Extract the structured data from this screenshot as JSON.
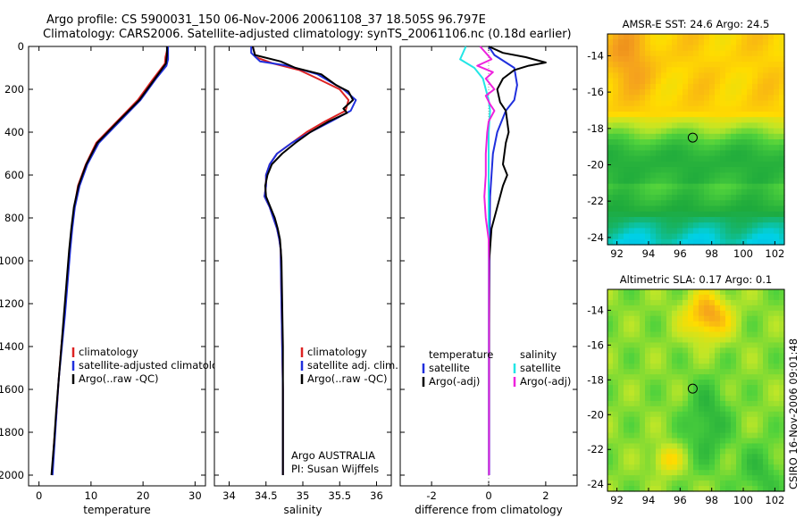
{
  "header": {
    "title_line1": "Argo profile: CS 5900031_150 06-Nov-2006 20061108_37 18.505S 96.797E",
    "title_line2": "Climatology: CARS2006. Satellite-adjusted climatology: synTS_20061106.nc (0.18d earlier)"
  },
  "colors": {
    "climatology": "#dd2222",
    "satellite_adjusted": "#1f2fdd",
    "argo": "#000000",
    "salinity_satellite": "#22e6e6",
    "salinity_argo": "#ee22dd"
  },
  "chart_data": [
    {
      "id": "temperature",
      "type": "line",
      "xlabel": "temperature",
      "ylabel": "",
      "xlim": [
        -2,
        32
      ],
      "ylim": [
        2050,
        0
      ],
      "xticks": [
        0,
        10,
        20,
        30
      ],
      "yticks": [
        0,
        200,
        400,
        600,
        800,
        1000,
        1200,
        1400,
        1600,
        1800,
        2000
      ],
      "legend": {
        "placement": "lower-right",
        "entries": [
          "climatology",
          "satellite-adjusted climatology",
          "Argo(..raw -QC)"
        ]
      },
      "series": [
        {
          "name": "climatology",
          "color": "#dd2222",
          "points": [
            [
              24.8,
              0
            ],
            [
              24.3,
              50
            ],
            [
              24.2,
              80
            ],
            [
              22,
              150
            ],
            [
              19,
              250
            ],
            [
              15,
              350
            ],
            [
              11,
              450
            ],
            [
              9,
              550
            ],
            [
              7.5,
              650
            ],
            [
              6.8,
              750
            ],
            [
              6.3,
              850
            ],
            [
              5.9,
              950
            ],
            [
              5.4,
              1100
            ],
            [
              4.9,
              1250
            ],
            [
              4.3,
              1400
            ],
            [
              3.8,
              1550
            ],
            [
              3.4,
              1700
            ],
            [
              2.9,
              1850
            ],
            [
              2.5,
              2000
            ]
          ]
        },
        {
          "name": "satellite-adjusted climatology",
          "color": "#1f2fdd",
          "points": [
            [
              24.8,
              0
            ],
            [
              24.8,
              60
            ],
            [
              24.5,
              90
            ],
            [
              22.5,
              150
            ],
            [
              19.5,
              250
            ],
            [
              15.5,
              350
            ],
            [
              11.5,
              450
            ],
            [
              9.3,
              550
            ],
            [
              7.8,
              650
            ],
            [
              6.9,
              750
            ],
            [
              6.4,
              850
            ],
            [
              6.0,
              950
            ],
            [
              5.5,
              1100
            ],
            [
              5.0,
              1250
            ],
            [
              4.4,
              1400
            ],
            [
              3.8,
              1550
            ],
            [
              3.4,
              1700
            ],
            [
              3.0,
              1850
            ],
            [
              2.6,
              2000
            ]
          ]
        },
        {
          "name": "Argo(..raw -QC)",
          "color": "#000000",
          "points": [
            [
              24.6,
              0
            ],
            [
              24.6,
              40
            ],
            [
              24.4,
              80
            ],
            [
              22.3,
              150
            ],
            [
              19.3,
              250
            ],
            [
              15.2,
              350
            ],
            [
              11.2,
              450
            ],
            [
              9.1,
              550
            ],
            [
              7.6,
              650
            ],
            [
              6.7,
              750
            ],
            [
              6.2,
              850
            ],
            [
              5.8,
              950
            ],
            [
              5.3,
              1100
            ],
            [
              4.8,
              1250
            ],
            [
              4.3,
              1400
            ],
            [
              3.8,
              1550
            ],
            [
              3.3,
              1700
            ],
            [
              2.9,
              1850
            ],
            [
              2.4,
              2000
            ]
          ]
        }
      ]
    },
    {
      "id": "salinity",
      "type": "line",
      "xlabel": "salinity",
      "ylabel": "",
      "xlim": [
        33.8,
        36.2
      ],
      "ylim": [
        2050,
        0
      ],
      "xticks": [
        34,
        34.5,
        35,
        35.5,
        36
      ],
      "legend": {
        "placement": "lower-right",
        "entries": [
          "climatology",
          "satellite adj. clim.",
          "Argo(..raw -QC)"
        ]
      },
      "annotations": [
        "Argo AUSTRALIA",
        "PI: Susan Wijffels"
      ],
      "series": [
        {
          "name": "climatology",
          "color": "#dd2222",
          "points": [
            [
              34.32,
              0
            ],
            [
              34.36,
              50
            ],
            [
              34.6,
              80
            ],
            [
              34.95,
              110
            ],
            [
              35.2,
              150
            ],
            [
              35.5,
              200
            ],
            [
              35.62,
              250
            ],
            [
              35.58,
              300
            ],
            [
              35.3,
              350
            ],
            [
              35.05,
              400
            ],
            [
              34.85,
              450
            ],
            [
              34.65,
              500
            ],
            [
              34.55,
              550
            ],
            [
              34.5,
              600
            ],
            [
              34.5,
              650
            ],
            [
              34.48,
              700
            ],
            [
              34.55,
              750
            ],
            [
              34.6,
              800
            ],
            [
              34.65,
              850
            ],
            [
              34.68,
              900
            ],
            [
              34.7,
              950
            ],
            [
              34.7,
              1000
            ],
            [
              34.71,
              1200
            ],
            [
              34.72,
              1400
            ],
            [
              34.73,
              1600
            ],
            [
              34.73,
              1800
            ],
            [
              34.73,
              2000
            ]
          ]
        },
        {
          "name": "satellite adj. clim.",
          "color": "#1f2fdd",
          "points": [
            [
              34.3,
              0
            ],
            [
              34.3,
              30
            ],
            [
              34.42,
              70
            ],
            [
              34.8,
              90
            ],
            [
              35.2,
              130
            ],
            [
              35.55,
              200
            ],
            [
              35.72,
              250
            ],
            [
              35.65,
              300
            ],
            [
              35.38,
              350
            ],
            [
              35.1,
              400
            ],
            [
              34.85,
              450
            ],
            [
              34.65,
              500
            ],
            [
              34.55,
              550
            ],
            [
              34.5,
              600
            ],
            [
              34.5,
              650
            ],
            [
              34.48,
              700
            ],
            [
              34.55,
              750
            ],
            [
              34.6,
              800
            ],
            [
              34.65,
              850
            ],
            [
              34.68,
              900
            ],
            [
              34.7,
              950
            ],
            [
              34.7,
              1000
            ],
            [
              34.71,
              1200
            ],
            [
              34.72,
              1400
            ],
            [
              34.73,
              1600
            ],
            [
              34.73,
              1800
            ],
            [
              34.73,
              2000
            ]
          ]
        },
        {
          "name": "Argo(..raw -QC)",
          "color": "#000000",
          "points": [
            [
              34.32,
              0
            ],
            [
              34.35,
              40
            ],
            [
              34.7,
              70
            ],
            [
              34.9,
              100
            ],
            [
              35.25,
              130
            ],
            [
              35.45,
              180
            ],
            [
              35.62,
              210
            ],
            [
              35.68,
              250
            ],
            [
              35.55,
              290
            ],
            [
              35.6,
              310
            ],
            [
              35.35,
              350
            ],
            [
              35.1,
              400
            ],
            [
              34.9,
              450
            ],
            [
              34.72,
              500
            ],
            [
              34.58,
              550
            ],
            [
              34.52,
              600
            ],
            [
              34.49,
              650
            ],
            [
              34.5,
              700
            ],
            [
              34.56,
              750
            ],
            [
              34.62,
              800
            ],
            [
              34.66,
              850
            ],
            [
              34.69,
              900
            ],
            [
              34.7,
              950
            ],
            [
              34.71,
              1000
            ],
            [
              34.72,
              1200
            ],
            [
              34.73,
              1400
            ],
            [
              34.73,
              1600
            ],
            [
              34.73,
              1800
            ],
            [
              34.73,
              2000
            ]
          ]
        }
      ]
    },
    {
      "id": "difference",
      "type": "line",
      "xlabel": "difference from climatology",
      "ylabel": "",
      "xlim": [
        -3.1,
        3.1
      ],
      "ylim": [
        2050,
        0
      ],
      "xticks": [
        -2,
        0,
        2
      ],
      "legend": {
        "placement": "lower-center",
        "temperature_heading": "temperature",
        "salinity_heading": "salinity",
        "entries": [
          "satellite",
          "Argo(-adj)",
          "satellite",
          "Argo(-adj)"
        ]
      },
      "series": [
        {
          "name": "temperature satellite",
          "color": "#1f2fdd",
          "points": [
            [
              0,
              0
            ],
            [
              0.2,
              40
            ],
            [
              0.9,
              100
            ],
            [
              1.0,
              180
            ],
            [
              0.9,
              250
            ],
            [
              0.6,
              300
            ],
            [
              0.3,
              400
            ],
            [
              0.15,
              500
            ],
            [
              0.1,
              600
            ],
            [
              0.05,
              700
            ],
            [
              0.04,
              800
            ],
            [
              0.03,
              1000
            ],
            [
              0.02,
              1200
            ],
            [
              0.02,
              1500
            ],
            [
              0.02,
              2000
            ]
          ]
        },
        {
          "name": "temperature Argo(-adj)",
          "color": "#000000",
          "points": [
            [
              0,
              0
            ],
            [
              0.5,
              30
            ],
            [
              1.3,
              50
            ],
            [
              2.0,
              75
            ],
            [
              1.4,
              90
            ],
            [
              0.9,
              110
            ],
            [
              0.5,
              150
            ],
            [
              0.3,
              200
            ],
            [
              0.4,
              260
            ],
            [
              0.6,
              300
            ],
            [
              0.7,
              400
            ],
            [
              0.6,
              450
            ],
            [
              0.5,
              550
            ],
            [
              0.65,
              600
            ],
            [
              0.5,
              650
            ],
            [
              0.3,
              750
            ],
            [
              0.1,
              850
            ],
            [
              0.02,
              1000
            ],
            [
              0.02,
              1200
            ],
            [
              0.01,
              1500
            ],
            [
              0.0,
              2000
            ]
          ]
        },
        {
          "name": "salinity satellite",
          "color": "#22e6e6",
          "points": [
            [
              -0.8,
              0
            ],
            [
              -1.0,
              60
            ],
            [
              -0.5,
              100
            ],
            [
              -0.2,
              150
            ],
            [
              0.0,
              250
            ],
            [
              0.05,
              300
            ],
            [
              0.0,
              400
            ],
            [
              0.0,
              600
            ],
            [
              0.0,
              800
            ],
            [
              0.0,
              1200
            ],
            [
              0.0,
              2000
            ]
          ]
        },
        {
          "name": "salinity Argo(-adj)",
          "color": "#ee22dd",
          "points": [
            [
              -0.3,
              0
            ],
            [
              0.1,
              60
            ],
            [
              -0.4,
              90
            ],
            [
              0.15,
              120
            ],
            [
              -0.1,
              150
            ],
            [
              0.2,
              200
            ],
            [
              -0.1,
              230
            ],
            [
              0.05,
              270
            ],
            [
              0.2,
              300
            ],
            [
              0.0,
              350
            ],
            [
              -0.05,
              400
            ],
            [
              -0.1,
              500
            ],
            [
              -0.1,
              600
            ],
            [
              -0.15,
              700
            ],
            [
              -0.1,
              800
            ],
            [
              0.0,
              900
            ],
            [
              0.01,
              1000
            ],
            [
              0.01,
              1200
            ],
            [
              0.01,
              2000
            ]
          ]
        }
      ]
    }
  ],
  "maps": [
    {
      "id": "sst",
      "title": "AMSR-E SST: 24.6 Argo: 24.5",
      "xticks": [
        92,
        94,
        96,
        98,
        100,
        102
      ],
      "yticks": [
        -14,
        -16,
        -18,
        -20,
        -22,
        -24
      ],
      "xlim": [
        91.4,
        102.6
      ],
      "ylim": [
        -24.4,
        -12.8
      ],
      "argo_position": {
        "lon": 96.797,
        "lat": -18.505
      }
    },
    {
      "id": "sla",
      "title": "Altimetric SLA: 0.17 Argo: 0.1",
      "xticks": [
        92,
        94,
        96,
        98,
        100,
        102
      ],
      "yticks": [
        -14,
        -16,
        -18,
        -20,
        -22,
        -24
      ],
      "xlim": [
        91.4,
        102.6
      ],
      "ylim": [
        -24.4,
        -12.8
      ],
      "argo_position": {
        "lon": 96.797,
        "lat": -18.505
      }
    }
  ],
  "footer": {
    "credit": "CSIRO 16-Nov-2006 09:01:48"
  }
}
